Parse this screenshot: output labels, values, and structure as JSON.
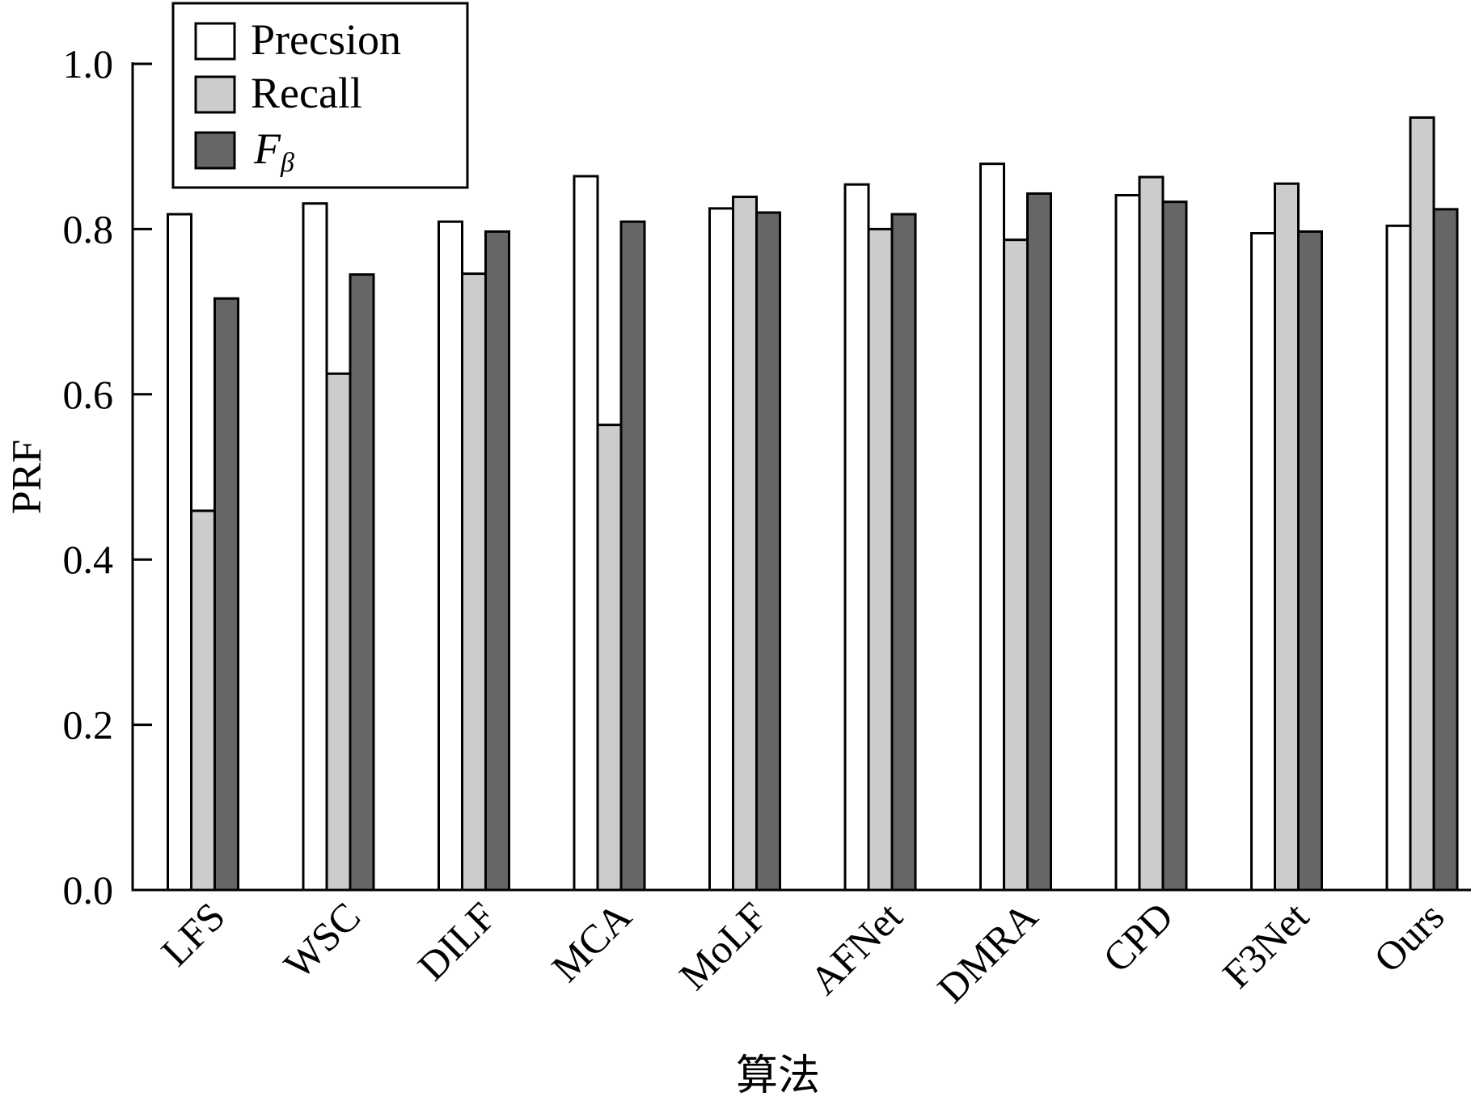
{
  "chart_data": {
    "type": "bar",
    "xlabel": "算法",
    "ylabel": "PRF",
    "ylim": [
      0,
      1.0
    ],
    "yticks": [
      "0.0",
      "0.2",
      "0.4",
      "0.6",
      "0.8",
      "1.0"
    ],
    "categories": [
      "LFS",
      "WSC",
      "DILF",
      "MCA",
      "MoLF",
      "AFNet",
      "DMRA",
      "CPD",
      "F3Net",
      "Ours"
    ],
    "series": [
      {
        "name": "Precsion",
        "color": "#ffffff",
        "values": [
          0.818,
          0.831,
          0.809,
          0.864,
          0.825,
          0.854,
          0.879,
          0.841,
          0.795,
          0.804
        ]
      },
      {
        "name": "Recall",
        "color": "#cccccc",
        "values": [
          0.459,
          0.625,
          0.746,
          0.563,
          0.839,
          0.8,
          0.787,
          0.863,
          0.855,
          0.935
        ]
      },
      {
        "name": "F",
        "name_subscript": "β",
        "color": "#666666",
        "values": [
          0.716,
          0.745,
          0.797,
          0.809,
          0.82,
          0.818,
          0.843,
          0.833,
          0.797,
          0.824
        ]
      }
    ],
    "grid": false,
    "legend_position": "top-left"
  }
}
